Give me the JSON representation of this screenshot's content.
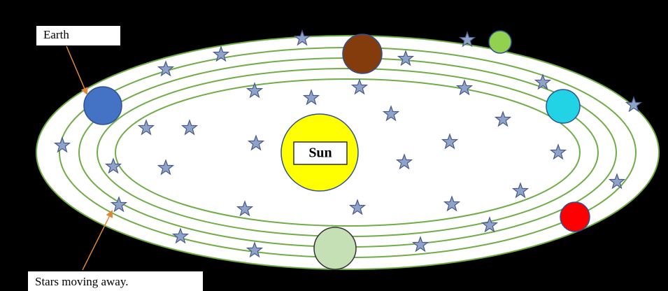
{
  "labels": {
    "earth": "Earth",
    "sun": "Sun",
    "stars": "Stars moving away."
  }
}
